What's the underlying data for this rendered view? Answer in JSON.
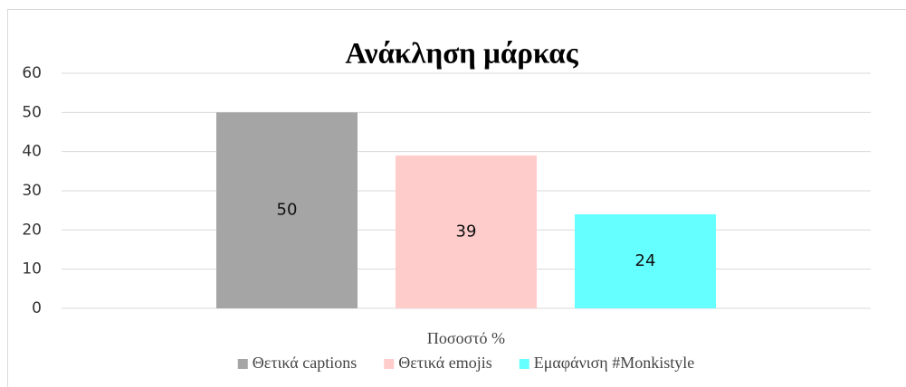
{
  "chart_data": {
    "type": "bar",
    "title": "Ανάκληση μάρκας",
    "categories": [
      "Ποσοστό %"
    ],
    "series": [
      {
        "name": "Θετικά captions",
        "color": "#a5a5a5",
        "values": [
          50
        ]
      },
      {
        "name": "Θετικά emojis",
        "color": "#ffcccc",
        "values": [
          39
        ]
      },
      {
        "name": "Εμαφάνιση #Monkistyle",
        "color": "#66ffff",
        "values": [
          24
        ]
      }
    ],
    "ylim": [
      0,
      60
    ],
    "yticks": [
      0,
      10,
      20,
      30,
      40,
      50,
      60
    ],
    "grid": true,
    "legend": "bottom"
  }
}
